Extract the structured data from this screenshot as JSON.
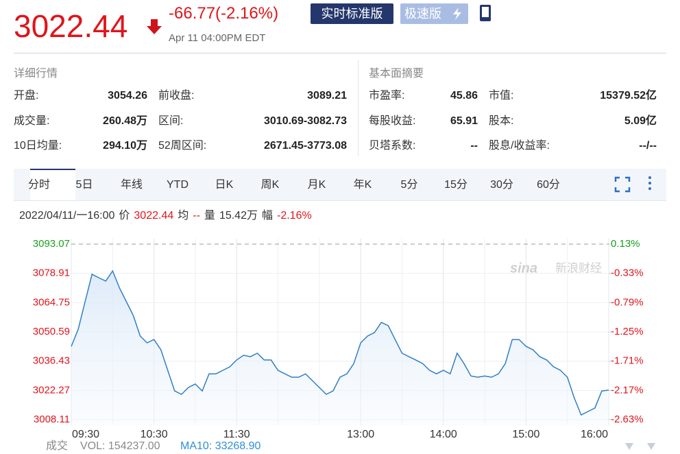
{
  "quote": {
    "price": "3022.44",
    "change": "-66.77(-2.16%)",
    "time": "Apr 11 04:00PM EDT",
    "buttons": [
      "实时标准版",
      "极速版"
    ]
  },
  "details": {
    "title": "详细行情",
    "rows": [
      [
        "开盘:",
        "3054.26",
        "前收盘:",
        "3089.21"
      ],
      [
        "成交量:",
        "260.48万",
        "区间:",
        "3010.69-3082.73"
      ],
      [
        "10日均量:",
        "294.10万",
        "52周区间:",
        "2671.45-3773.08"
      ]
    ]
  },
  "fundamentals": {
    "title": "基本面摘要",
    "rows": [
      [
        "市盈率:",
        "45.86",
        "市值:",
        "15379.52亿"
      ],
      [
        "每股收益:",
        "65.91",
        "股本:",
        "5.09亿"
      ],
      [
        "贝塔系数:",
        "--",
        "股息/收益率:",
        "--/--"
      ]
    ]
  },
  "tabs": [
    "分时",
    "5日",
    "年线",
    "YTD",
    "日K",
    "周K",
    "月K",
    "年K",
    "5分",
    "15分",
    "30分",
    "60分"
  ],
  "info": [
    "2022/04/11/一16:00",
    "价",
    "3022.44",
    "均",
    "--",
    "量",
    "15.42万",
    "幅",
    "-2.16%"
  ],
  "chart_data": {
    "type": "line",
    "xlim": [
      "09:30",
      "16:00"
    ],
    "xticks": [
      "09:30",
      "10:30",
      "11:30",
      "13:00",
      "14:00",
      "15:00",
      "16:00"
    ],
    "ylim": [
      3008.11,
      3093.07
    ],
    "yticks": [
      3008.11,
      3022.27,
      3036.43,
      3050.59,
      3064.75,
      3078.91,
      3093.07
    ],
    "y2lim": [
      -2.63,
      0.13
    ],
    "y2ticks": [
      {
        "value": -2.63,
        "label": "-2.63%"
      },
      {
        "value": -2.17,
        "label": "-2.17%"
      },
      {
        "value": -1.71,
        "label": "-1.71%"
      },
      {
        "value": -1.25,
        "label": "-1.25%"
      },
      {
        "value": -0.79,
        "label": "-0.79%"
      },
      {
        "value": -0.33,
        "label": "-0.33%"
      },
      {
        "value": 0.13,
        "label": "0.13%"
      }
    ],
    "grid": true,
    "color": "#2f7ec7",
    "up_color": "#1a9e1a",
    "down_color": "#e0141b",
    "values": [
      3043.6,
      3051.9,
      3065.2,
      3078.5,
      3076.8,
      3075.2,
      3080.1,
      3071.8,
      3065.2,
      3058.5,
      3048.6,
      3045.3,
      3046.9,
      3042.0,
      3032.0,
      3022.0,
      3020.4,
      3023.7,
      3025.4,
      3022.0,
      3030.3,
      3030.3,
      3032.0,
      3033.7,
      3037.0,
      3039.3,
      3038.6,
      3040.3,
      3037.0,
      3037.0,
      3032.0,
      3030.3,
      3028.7,
      3028.7,
      3030.3,
      3027.0,
      3023.7,
      3020.4,
      3022.0,
      3028.7,
      3030.3,
      3035.3,
      3045.3,
      3048.6,
      3050.3,
      3055.2,
      3053.6,
      3046.9,
      3040.3,
      3038.6,
      3037.0,
      3035.3,
      3032.0,
      3030.3,
      3032.0,
      3030.3,
      3040.3,
      3035.3,
      3029.3,
      3028.7,
      3029.3,
      3028.7,
      3030.3,
      3035.3,
      3046.9,
      3046.9,
      3043.6,
      3042.0,
      3038.6,
      3037.0,
      3033.7,
      3032.0,
      3028.7,
      3018.7,
      3010.4,
      3012.1,
      3013.8,
      3022.0,
      3022.4
    ]
  },
  "footer": {
    "label": "成交",
    "vol": "VOL: 154237.00",
    "ma10": "MA10: 33268.90"
  },
  "watermark": {
    "logo": "sina",
    "name": "新浪财经"
  }
}
